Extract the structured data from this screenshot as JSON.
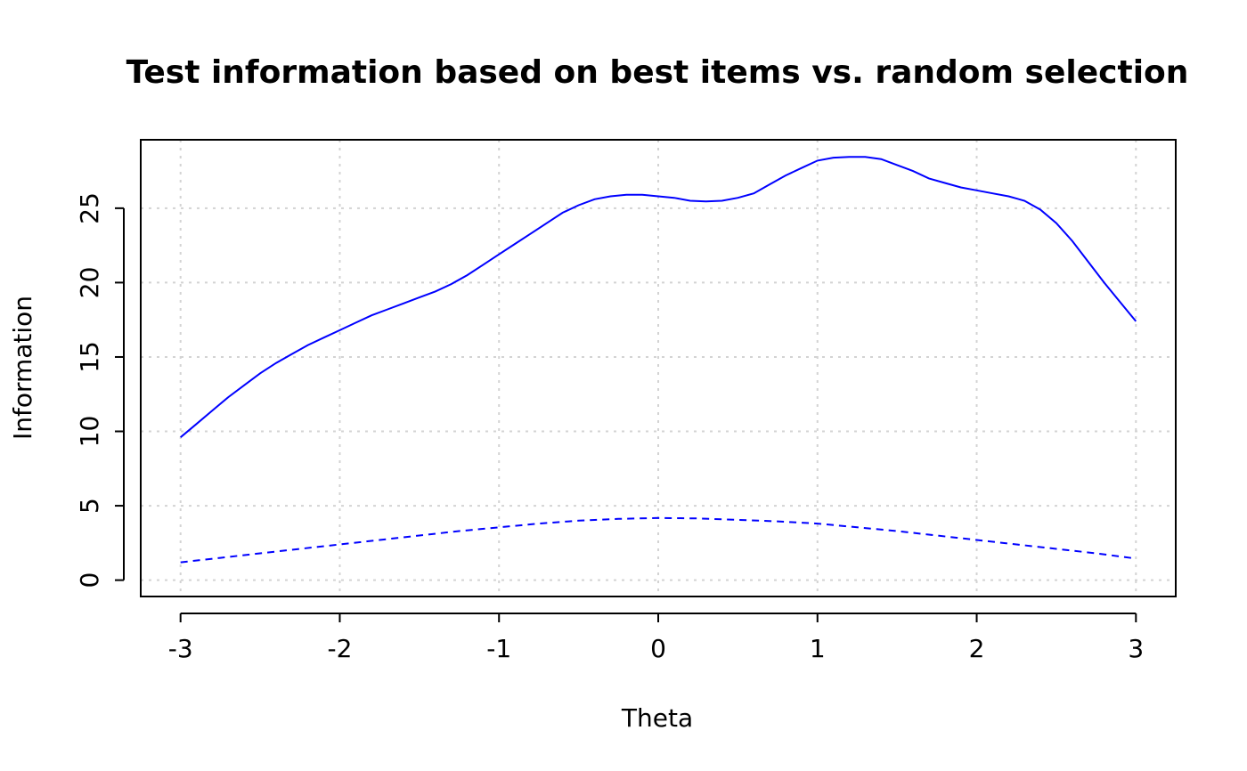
{
  "chart_data": {
    "type": "line",
    "title": "Test information based on best items vs. random selection",
    "xlabel": "Theta",
    "ylabel": "Information",
    "xlim": [
      -3.25,
      3.25
    ],
    "ylim": [
      -1.1,
      29.6
    ],
    "xticks": [
      -3,
      -2,
      -1,
      0,
      1,
      2,
      3
    ],
    "xtick_labels": [
      "-3",
      "-2",
      "-1",
      "0",
      "1",
      "2",
      "3"
    ],
    "yticks": [
      0,
      5,
      10,
      15,
      20,
      25
    ],
    "ytick_labels": [
      "0",
      "5",
      "10",
      "15",
      "20",
      "25"
    ],
    "grid": true,
    "legend": "none",
    "series": [
      {
        "color": "#0000ff",
        "dash": "solid",
        "x": [
          -3.0,
          -2.9,
          -2.8,
          -2.7,
          -2.6,
          -2.5,
          -2.4,
          -2.3,
          -2.2,
          -2.1,
          -2.0,
          -1.9,
          -1.8,
          -1.7,
          -1.6,
          -1.5,
          -1.4,
          -1.3,
          -1.2,
          -1.1,
          -1.0,
          -0.9,
          -0.8,
          -0.7,
          -0.6,
          -0.5,
          -0.4,
          -0.3,
          -0.2,
          -0.1,
          0.0,
          0.1,
          0.2,
          0.3,
          0.4,
          0.5,
          0.6,
          0.7,
          0.8,
          0.9,
          1.0,
          1.1,
          1.2,
          1.3,
          1.4,
          1.5,
          1.6,
          1.7,
          1.8,
          1.9,
          2.0,
          2.1,
          2.2,
          2.3,
          2.4,
          2.5,
          2.6,
          2.7,
          2.8,
          2.9,
          3.0
        ],
        "y": [
          9.6,
          10.5,
          11.4,
          12.3,
          13.1,
          13.9,
          14.6,
          15.2,
          15.8,
          16.3,
          16.8,
          17.3,
          17.8,
          18.2,
          18.6,
          19.0,
          19.4,
          19.9,
          20.5,
          21.2,
          21.9,
          22.6,
          23.3,
          24.0,
          24.7,
          25.2,
          25.6,
          25.8,
          25.9,
          25.9,
          25.8,
          25.7,
          25.5,
          25.45,
          25.5,
          25.7,
          26.0,
          26.6,
          27.2,
          27.7,
          28.2,
          28.4,
          28.45,
          28.45,
          28.3,
          27.9,
          27.5,
          27.0,
          26.7,
          26.4,
          26.2,
          26.0,
          25.8,
          25.5,
          24.9,
          24.0,
          22.8,
          21.4,
          20.0,
          18.7,
          17.4
        ]
      },
      {
        "color": "#0000ff",
        "dash": "dashed",
        "x": [
          -3.0,
          -2.75,
          -2.5,
          -2.25,
          -2.0,
          -1.75,
          -1.5,
          -1.25,
          -1.0,
          -0.75,
          -0.5,
          -0.25,
          0.0,
          0.25,
          0.5,
          0.75,
          1.0,
          1.25,
          1.5,
          1.75,
          2.0,
          2.25,
          2.5,
          2.75,
          3.0
        ],
        "y": [
          1.2,
          1.5,
          1.8,
          2.1,
          2.4,
          2.7,
          3.0,
          3.3,
          3.55,
          3.8,
          4.0,
          4.12,
          4.18,
          4.15,
          4.05,
          3.95,
          3.8,
          3.55,
          3.3,
          3.0,
          2.7,
          2.4,
          2.1,
          1.8,
          1.45
        ]
      }
    ]
  }
}
